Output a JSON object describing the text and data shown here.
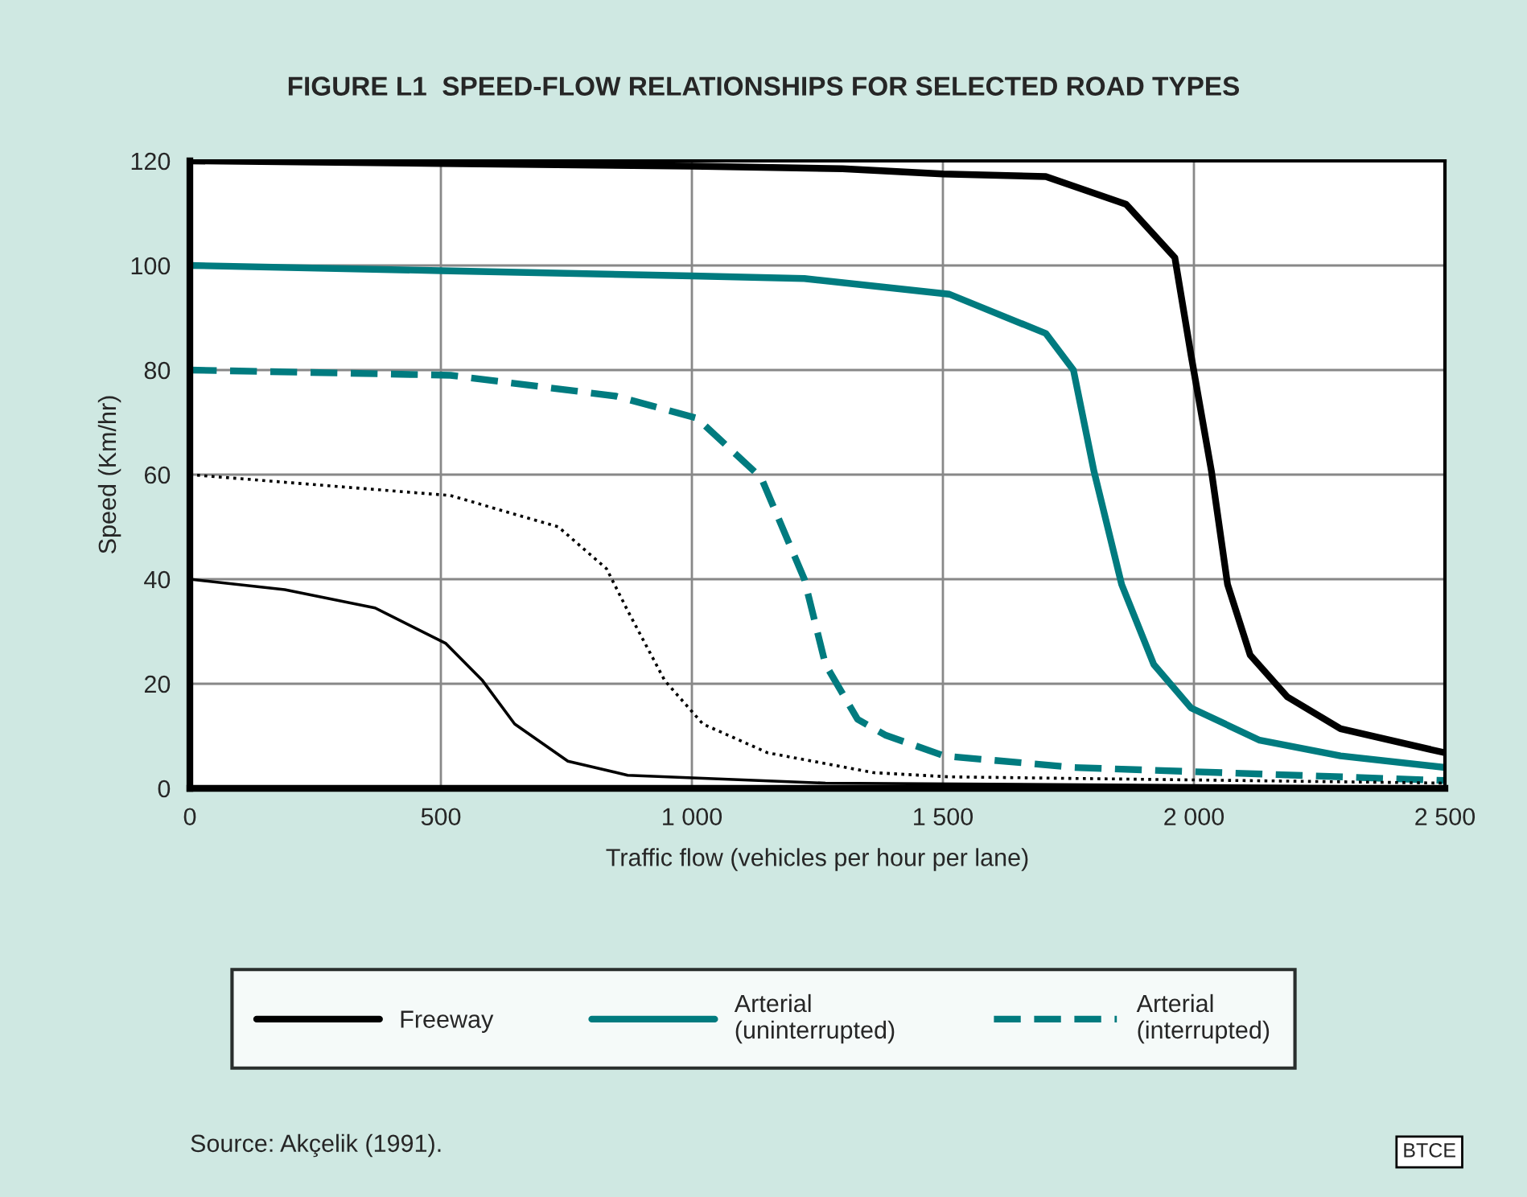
{
  "chart_data": {
    "type": "line",
    "title": "FIGURE L1  SPEED-FLOW RELATIONSHIPS FOR SELECTED ROAD TYPES",
    "xlabel": "Traffic flow (vehicles per hour per lane)",
    "ylabel": "Speed (Km/hr)",
    "series": [
      {
        "name": "Freeway",
        "color": "#000000",
        "line_style": "solid",
        "x": [
          0,
          500,
          1000,
          1300,
          1500,
          1705,
          1865,
          1962,
          1994,
          2035,
          2067,
          2112,
          2186,
          2292,
          2500
        ],
        "values": [
          120,
          119.5,
          119,
          118.5,
          117.5,
          117,
          111.7,
          101.5,
          83,
          60.6,
          39,
          25.5,
          17.5,
          11.4,
          6.8
        ]
      },
      {
        "name": "Arterial\n(uninterrupted)",
        "color": "#007b7f",
        "line_style": "solid",
        "x": [
          0,
          500,
          1000,
          1224,
          1513,
          1705,
          1760,
          1801,
          1856,
          1920,
          1994,
          2131,
          2292,
          2500
        ],
        "values": [
          100,
          99,
          98,
          97.5,
          94.5,
          87,
          80,
          60.6,
          39,
          23.7,
          15.4,
          9.2,
          6.2,
          4
        ]
      },
      {
        "name": "Arterial\n(interrupted)",
        "color": "#007b7f",
        "line_style": "dashed",
        "x": [
          0,
          519,
          849,
          1010,
          1138,
          1224,
          1266,
          1330,
          1385,
          1503,
          1760,
          2500
        ],
        "values": [
          80,
          79,
          75,
          70.8,
          59.4,
          40,
          23.7,
          13.2,
          10.2,
          6.2,
          4,
          1.5
        ]
      },
      {
        "color": "#000000",
        "line_style": "dotted",
        "x": [
          0,
          519,
          734,
          830,
          872,
          946,
          1022,
          1151,
          1362,
          1513,
          2500
        ],
        "values": [
          60,
          56,
          50,
          42,
          34,
          20.6,
          12.3,
          6.8,
          3,
          2.2,
          1
        ]
      },
      {
        "color": "#000000",
        "line_style": "solid",
        "x": [
          0,
          189,
          369,
          510,
          583,
          647,
          753,
          872,
          1266,
          2500
        ],
        "values": [
          40,
          38,
          34.5,
          27.7,
          20.6,
          12.3,
          5.2,
          2.5,
          1,
          0.2
        ]
      }
    ],
    "xlim": [
      0,
      2500
    ],
    "xticks": [
      0,
      500,
      {
        "value": 1000,
        "label": "1 000"
      },
      {
        "value": 1500,
        "label": "1 500"
      },
      {
        "value": 2000,
        "label": "2 000"
      },
      {
        "value": 2500,
        "label": "2 500"
      }
    ],
    "ylim": [
      0,
      120
    ],
    "yticks": [
      0,
      20,
      40,
      60,
      80,
      100,
      120
    ],
    "grid": true,
    "legend": "bottom",
    "marker": "none",
    "annotations": [
      "Source: Akçelik (1991).",
      "BTCE"
    ]
  }
}
